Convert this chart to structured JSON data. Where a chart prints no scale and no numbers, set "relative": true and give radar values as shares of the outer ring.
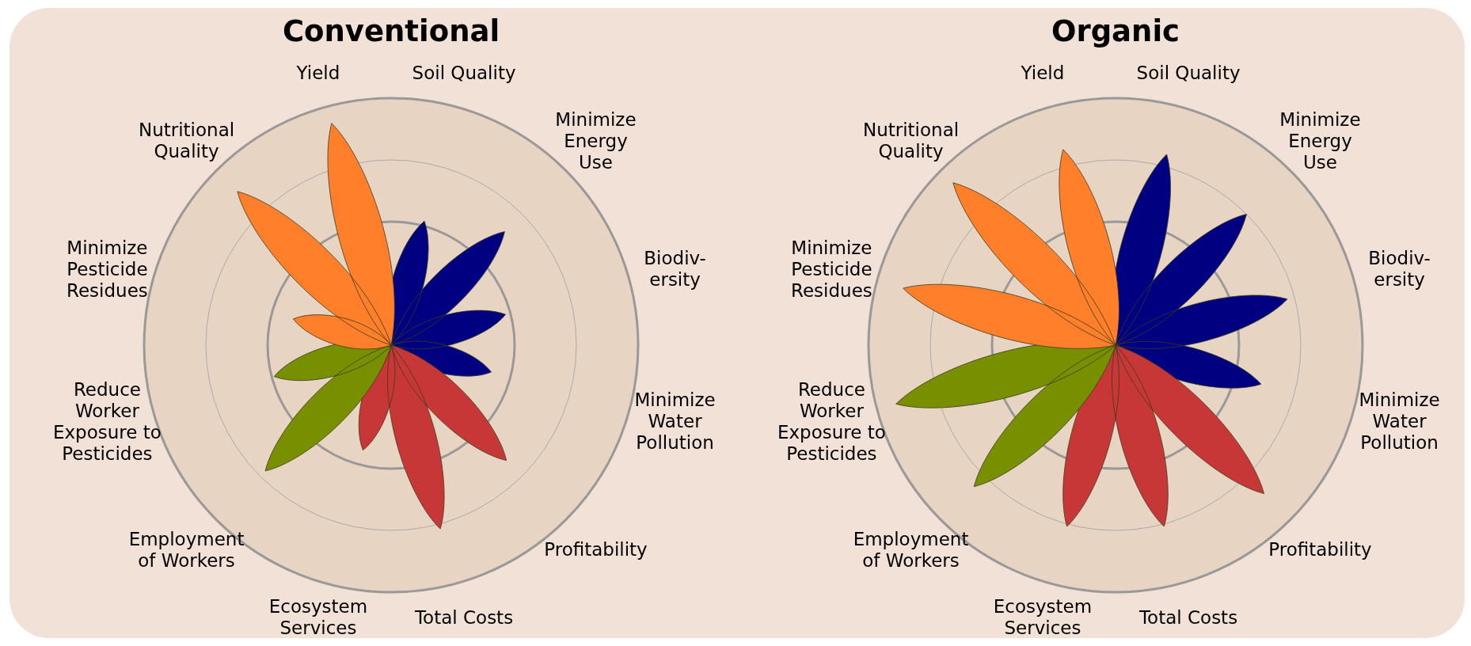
{
  "chart_data": [
    {
      "type": "radar",
      "title": "Conventional",
      "relative": true,
      "categories": [
        "Soil Quality",
        "Minimize\nEnergy\nUse",
        "Biodiv-\nersity",
        "Minimize\nWater\nPollution",
        "Profitability",
        "Total Costs",
        "Ecosystem\nServices",
        "Employment\nof Workers",
        "Reduce\nWorker\nExposure to\nPesticides",
        "Minimize\nPesticide\nResidues",
        "Nutritional\nQuality",
        "Yield"
      ],
      "series": [
        {
          "color": "#000080",
          "values": [
            0.52,
            0.65,
            0.48,
            0.42,
            0,
            0,
            0,
            0,
            0,
            0,
            0,
            0
          ]
        },
        {
          "color": "#c83737",
          "values": [
            0,
            0,
            0,
            0,
            0.66,
            0.77,
            0.44,
            0,
            0,
            0,
            0,
            0
          ]
        },
        {
          "color": "#789000",
          "values": [
            0,
            0,
            0,
            0,
            0,
            0,
            0,
            0.72,
            0.49,
            0,
            0,
            0
          ]
        },
        {
          "color": "#ff7f2a",
          "values": [
            0,
            0,
            0,
            0,
            0,
            0,
            0,
            0,
            0,
            0.41,
            0.88,
            0.93
          ]
        }
      ]
    },
    {
      "type": "radar",
      "title": "Organic",
      "relative": true,
      "categories": [
        "Soil Quality",
        "Minimize\nEnergy\nUse",
        "Biodiv-\nersity",
        "Minimize\nWater\nPollution",
        "Profitability",
        "Total Costs",
        "Ecosystem\nServices",
        "Employment\nof Workers",
        "Reduce\nWorker\nExposure to\nPesticides",
        "Minimize\nPesticide\nResidues",
        "Nutritional\nQuality",
        "Yield"
      ],
      "series": [
        {
          "color": "#000080",
          "values": [
            0.8,
            0.75,
            0.72,
            0.61,
            0,
            0,
            0,
            0,
            0,
            0,
            0,
            0
          ]
        },
        {
          "color": "#c83737",
          "values": [
            0,
            0,
            0,
            0,
            0.85,
            0.76,
            0.76,
            0,
            0,
            0,
            0,
            0
          ]
        },
        {
          "color": "#789000",
          "values": [
            0,
            0,
            0,
            0,
            0,
            0,
            0,
            0.81,
            0.92,
            0,
            0,
            0
          ]
        },
        {
          "color": "#ff7f2a",
          "values": [
            0,
            0,
            0,
            0,
            0,
            0,
            0,
            0,
            0,
            0.89,
            0.93,
            0.82
          ]
        }
      ]
    }
  ]
}
